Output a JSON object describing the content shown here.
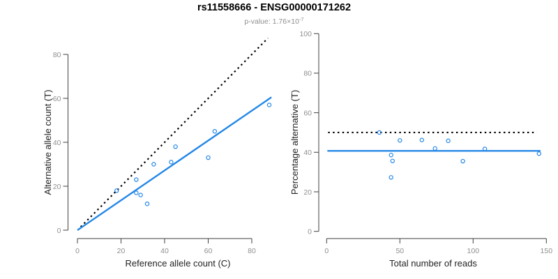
{
  "header": {
    "title": "rs11558666 - ENSG00000171262",
    "subtitle_prefix": "p-value: ",
    "subtitle_mantissa": "1.76",
    "subtitle_times": "×10",
    "subtitle_exponent": "-7"
  },
  "colors": {
    "accent": "#2387e6",
    "reference": "#000000",
    "axis": "#404040",
    "tick_label": "#8f8f8f",
    "axis_title": "#222222",
    "title": "#000000",
    "subtitle": "#8f8f8f",
    "background": "#ffffff"
  },
  "chart_data": [
    {
      "type": "scatter",
      "panel": "left",
      "xlabel": "Reference allele count (C)",
      "ylabel": "Alternative allele count (T)",
      "xlim": [
        0,
        88
      ],
      "ylim": [
        0,
        88
      ],
      "xticks": [
        0,
        20,
        40,
        60,
        80
      ],
      "yticks": [
        0,
        20,
        40,
        60,
        80
      ],
      "grid": false,
      "points": [
        [
          18,
          18
        ],
        [
          27,
          17
        ],
        [
          27,
          23
        ],
        [
          29,
          16
        ],
        [
          32,
          12
        ],
        [
          35,
          30
        ],
        [
          43,
          31
        ],
        [
          45,
          38
        ],
        [
          60,
          33
        ],
        [
          63,
          45
        ],
        [
          88,
          57
        ]
      ],
      "lines": [
        {
          "name": "identity-line",
          "style": "dotted",
          "color": "reference",
          "points": [
            [
              1.5,
              1.5
            ],
            [
              87.4,
              87.4
            ]
          ]
        },
        {
          "name": "regression-line",
          "style": "solid",
          "color": "accent",
          "points": [
            [
              0,
              0
            ],
            [
              89,
              60.5
            ]
          ]
        }
      ]
    },
    {
      "type": "scatter",
      "panel": "right",
      "xlabel": "Total number of reads",
      "ylabel": "Percentage alternative (T)",
      "xlim": [
        0,
        150
      ],
      "ylim": [
        0,
        100
      ],
      "xticks": [
        0,
        50,
        100,
        150
      ],
      "yticks": [
        0,
        20,
        40,
        60,
        80,
        100
      ],
      "grid": false,
      "points": [
        [
          36,
          50
        ],
        [
          44,
          38.6
        ],
        [
          44,
          27.3
        ],
        [
          45,
          35.6
        ],
        [
          50,
          46
        ],
        [
          65,
          46.2
        ],
        [
          74,
          41.9
        ],
        [
          83,
          45.8
        ],
        [
          93,
          35.5
        ],
        [
          108,
          41.7
        ],
        [
          145,
          39.3
        ]
      ],
      "lines": [
        {
          "name": "expected-50pct-line",
          "style": "dotted",
          "color": "reference",
          "points": [
            [
              1,
              50
            ],
            [
              143.5,
              50
            ]
          ]
        },
        {
          "name": "mean-percentage-line",
          "style": "solid",
          "color": "accent",
          "points": [
            [
              0.5,
              40.7
            ],
            [
              146,
              40.7
            ]
          ]
        }
      ]
    }
  ]
}
